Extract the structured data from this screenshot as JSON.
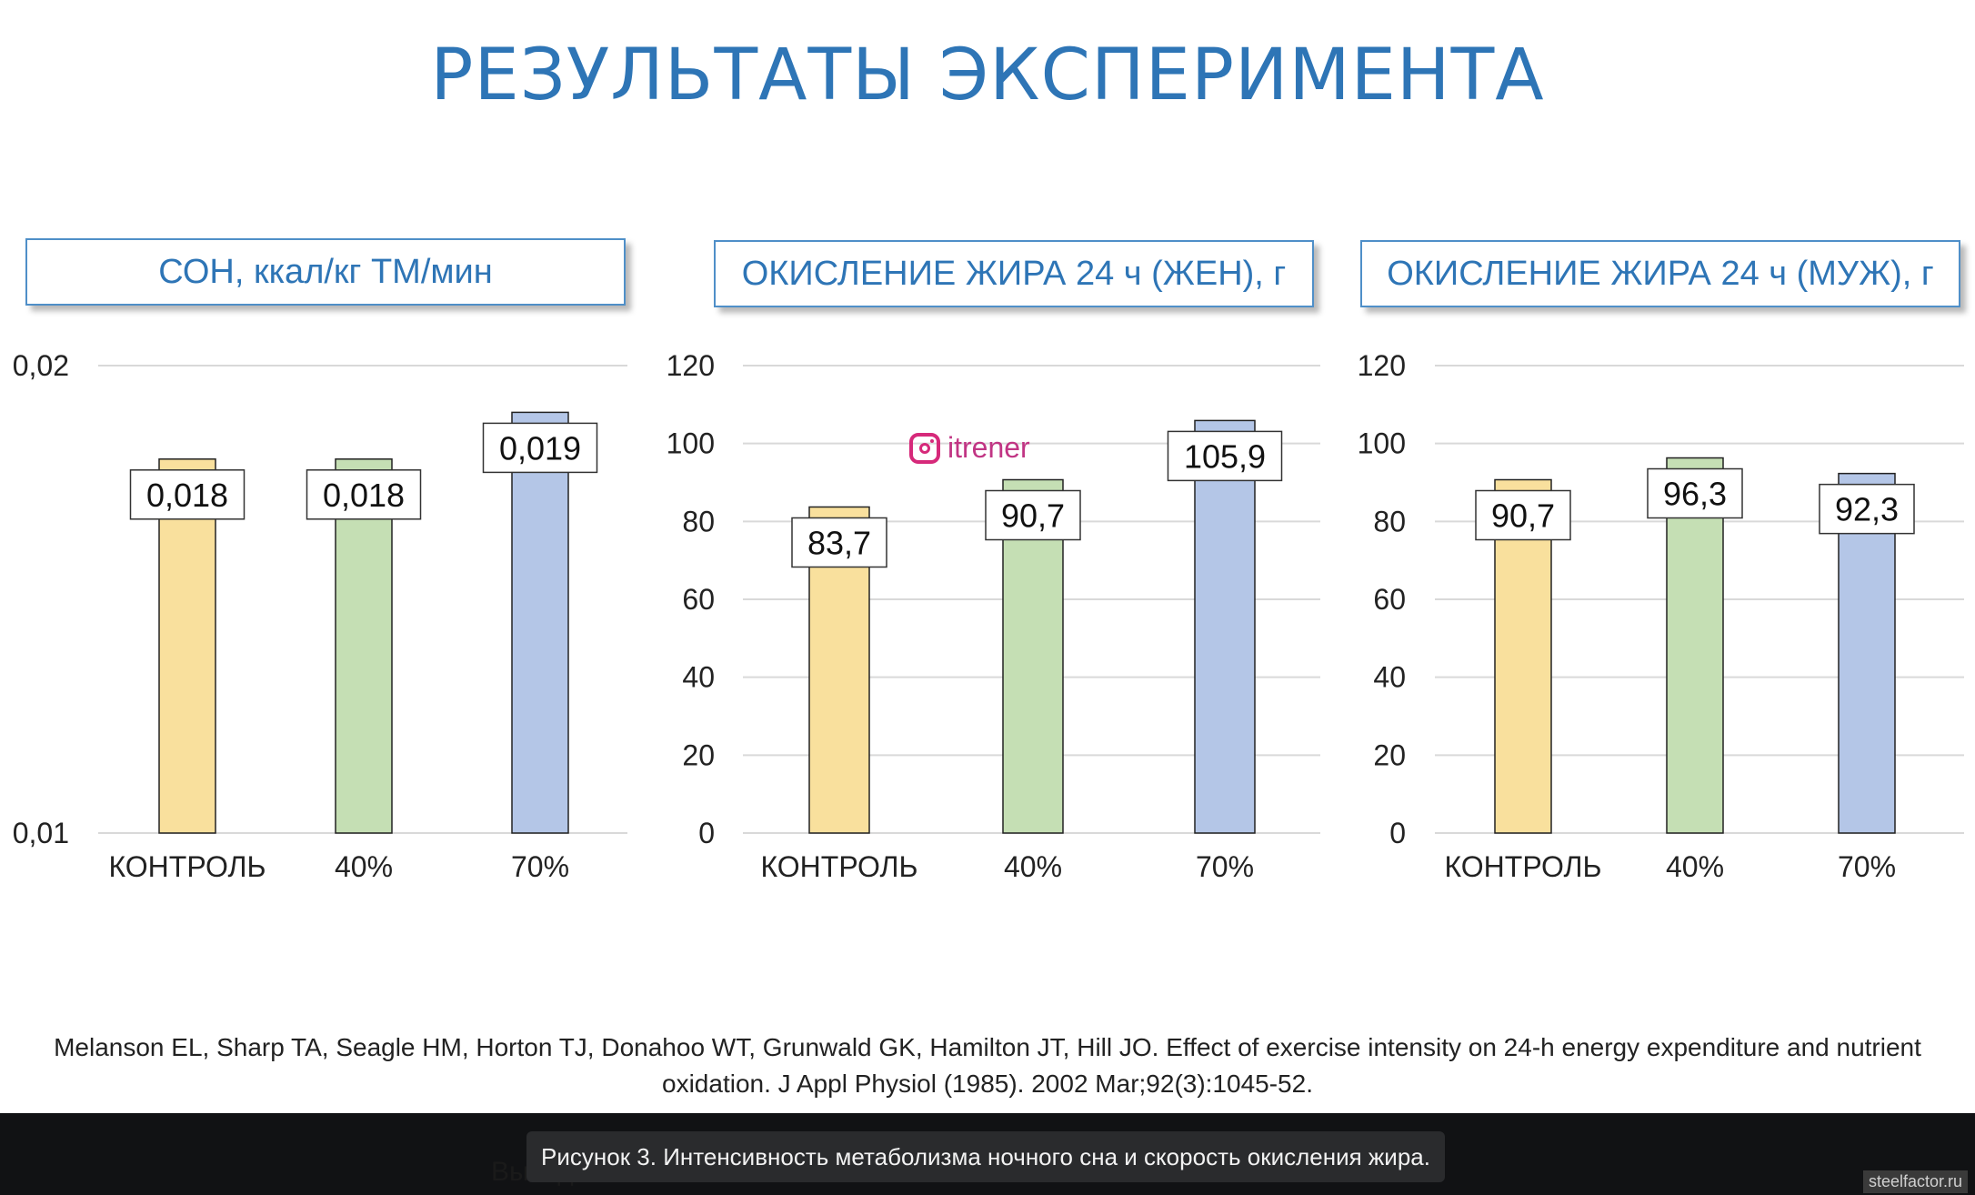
{
  "title": "РЕЗУЛЬТАТЫ ЭКСПЕРИМЕНТА",
  "chart_data": [
    {
      "type": "bar",
      "title": "СОН, ккал/кг ТМ/мин",
      "categories": [
        "КОНТРОЛЬ",
        "40%",
        "70%"
      ],
      "values": [
        0.018,
        0.018,
        0.019
      ],
      "value_labels": [
        "0,018",
        "0,018",
        "0,019"
      ],
      "colors": [
        "#f9e09d",
        "#c5dfb4",
        "#b4c6e7"
      ],
      "ylim": [
        0.01,
        0.02
      ],
      "yticks": [
        0.01,
        0.02
      ],
      "ytick_labels": [
        "0,01",
        "0,02"
      ],
      "grid": true
    },
    {
      "type": "bar",
      "title": "ОКИСЛЕНИЕ ЖИРА 24 ч (ЖЕН), г",
      "categories": [
        "КОНТРОЛЬ",
        "40%",
        "70%"
      ],
      "values": [
        83.7,
        90.7,
        105.9
      ],
      "value_labels": [
        "83,7",
        "90,7",
        "105,9"
      ],
      "colors": [
        "#f9e09d",
        "#c5dfb4",
        "#b4c6e7"
      ],
      "ylim": [
        0,
        120
      ],
      "yticks": [
        0,
        20,
        40,
        60,
        80,
        100,
        120
      ],
      "ytick_labels": [
        "0",
        "20",
        "40",
        "60",
        "80",
        "100",
        "120"
      ],
      "grid": true
    },
    {
      "type": "bar",
      "title": "ОКИСЛЕНИЕ ЖИРА 24 ч (МУЖ), г",
      "categories": [
        "КОНТРОЛЬ",
        "40%",
        "70%"
      ],
      "values": [
        90.7,
        96.3,
        92.3
      ],
      "value_labels": [
        "90,7",
        "96,3",
        "92,3"
      ],
      "colors": [
        "#f9e09d",
        "#c5dfb4",
        "#b4c6e7"
      ],
      "ylim": [
        0,
        120
      ],
      "yticks": [
        0,
        20,
        40,
        60,
        80,
        100,
        120
      ],
      "ytick_labels": [
        "0",
        "20",
        "40",
        "60",
        "80",
        "100",
        "120"
      ],
      "grid": true
    }
  ],
  "citation_line1": "Melanson EL, Sharp TA, Seagle HM, Horton TJ, Donahoo WT, Grunwald GK, Hamilton JT, Hill JO. Effect of exercise intensity on 24-h energy expenditure and nutrient",
  "citation_line2": "oxidation. J Appl Physiol (1985). 2002 Mar;92(3):1045-52.",
  "caption": "Рисунок 3. Интенсивность метаболизма ночного сна и скорость окисления жира.",
  "partial_text": "Вывод",
  "watermark_instagram": "itrener",
  "watermark_source": "steelfactor.ru",
  "colors": {
    "title": "#2e75b6",
    "caption_bg": "#2a2b2d",
    "bar_stroke": "#222222"
  }
}
